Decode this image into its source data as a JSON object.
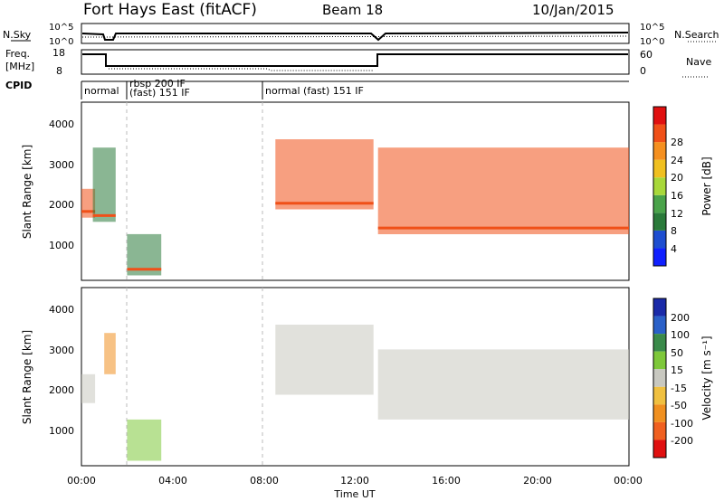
{
  "header": {
    "station": "Fort Hays East (fitACF)",
    "beam": "Beam 18",
    "date": "10/Jan/2015"
  },
  "noise_panel": {
    "left_label": "N.Sky",
    "right_label": "N.Search",
    "left_ticks": [
      "10^5",
      "10^0"
    ],
    "right_ticks": [
      "10^5",
      "10^0"
    ]
  },
  "freq_panel": {
    "left_label_1": "Freq.",
    "left_label_2": "[MHz]",
    "right_label": "Nave",
    "left_ticks": [
      "18",
      "8"
    ],
    "right_ticks": [
      "60",
      "0"
    ]
  },
  "cpid_panel": {
    "label": "CPID",
    "segments": [
      {
        "start_hour": 0.0,
        "text": "normal",
        "text2": ""
      },
      {
        "start_hour": 2.0,
        "text": "rbsp 200 IF",
        "text2": "(fast) 151 IF"
      },
      {
        "start_hour": 7.9,
        "text": "normal (fast) 151 IF",
        "text2": ""
      }
    ]
  },
  "axes": {
    "ylabel": "Slant Range [km]",
    "xlabel": "Time UT",
    "x_ticks": [
      "00:00",
      "04:00",
      "08:00",
      "12:00",
      "16:00",
      "20:00",
      "00:00"
    ],
    "y_ticks": [
      "1000",
      "2000",
      "3000",
      "4000"
    ]
  },
  "colorbars": {
    "power": {
      "label": "Power [dB]",
      "ticks": [
        "4",
        "8",
        "12",
        "16",
        "20",
        "24",
        "28"
      ],
      "colors": [
        "#1020ff",
        "#1e4ed0",
        "#2a7a3a",
        "#4aa34a",
        "#a8d83a",
        "#f0c020",
        "#f59020",
        "#f05018",
        "#e01010"
      ]
    },
    "velocity": {
      "label": "Velocity [m s⁻¹]",
      "ticks": [
        "200",
        "100",
        "50",
        "15",
        "-15",
        "-50",
        "-100",
        "-200"
      ],
      "colors": [
        "#1a2aa8",
        "#2a60c8",
        "#3a8a4a",
        "#7ec83a",
        "#c8c8c0",
        "#f0c040",
        "#f09020",
        "#f06020",
        "#e01010"
      ]
    }
  },
  "chart_data": [
    {
      "type": "heatmap",
      "xlabel": "Time UT",
      "ylabel": "Slant Range [km]",
      "xlim": [
        0,
        24
      ],
      "ylim": [
        180,
        4500
      ],
      "colorbar": "Power [dB]",
      "features": [
        {
          "t_start": 0.0,
          "t_end": 0.6,
          "range_low": 1700,
          "range_high": 2400,
          "peak_db": 28
        },
        {
          "t_start": 0.5,
          "t_end": 1.5,
          "range_low": 1600,
          "range_high": 3400,
          "peak_db": 12
        },
        {
          "t_start": 2.0,
          "t_end": 3.5,
          "range_low": 300,
          "range_high": 1300,
          "peak_db": 12
        },
        {
          "t_start": 8.5,
          "t_end": 12.8,
          "range_low": 1900,
          "range_high": 3600,
          "peak_db": 28
        },
        {
          "t_start": 13.0,
          "t_end": 24.0,
          "range_low": 1300,
          "range_high": 3400,
          "peak_db": 28
        }
      ]
    },
    {
      "type": "heatmap",
      "xlabel": "Time UT",
      "ylabel": "Slant Range [km]",
      "xlim": [
        0,
        24
      ],
      "ylim": [
        180,
        4500
      ],
      "colorbar": "Velocity [m s⁻¹]",
      "features": [
        {
          "t_start": 0.0,
          "t_end": 0.6,
          "range_low": 1700,
          "range_high": 2400,
          "velocity": 0
        },
        {
          "t_start": 1.0,
          "t_end": 1.5,
          "range_low": 2400,
          "range_high": 3400,
          "velocity": -60
        },
        {
          "t_start": 2.0,
          "t_end": 3.5,
          "range_low": 300,
          "range_high": 1300,
          "velocity": 40
        },
        {
          "t_start": 8.5,
          "t_end": 12.8,
          "range_low": 1900,
          "range_high": 3600,
          "velocity": 0
        },
        {
          "t_start": 13.0,
          "t_end": 24.0,
          "range_low": 1300,
          "range_high": 3000,
          "velocity": 0
        }
      ]
    }
  ]
}
